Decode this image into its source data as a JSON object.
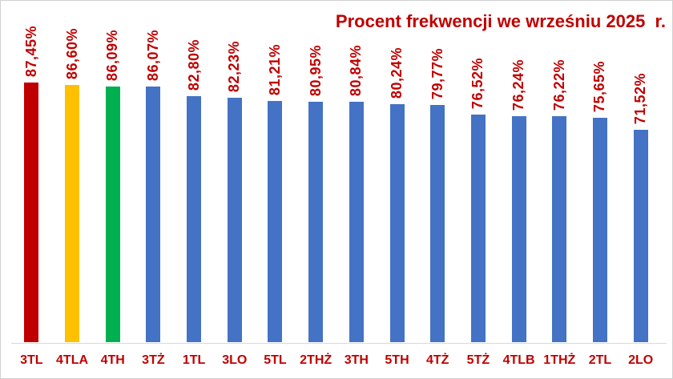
{
  "chart_data": {
    "type": "bar",
    "title": "Procent frekwencji we wrześniu 2025  r.",
    "categories": [
      "3TL",
      "4TLA",
      "4TH",
      "3TŻ",
      "1TL",
      "3LO",
      "5TL",
      "2THŻ",
      "3TH",
      "5TH",
      "4TŻ",
      "5TŻ",
      "4TLB",
      "1THŻ",
      "2TL",
      "2LO"
    ],
    "values": [
      87.45,
      86.6,
      86.09,
      86.07,
      82.8,
      82.23,
      81.21,
      80.95,
      80.84,
      80.24,
      79.77,
      76.52,
      76.24,
      76.22,
      75.65,
      71.52
    ],
    "value_labels": [
      "87,45%",
      "86,60%",
      "86,09%",
      "86,07%",
      "82,80%",
      "82,23%",
      "81,21%",
      "80,95%",
      "80,84%",
      "80,24%",
      "79,77%",
      "76,52%",
      "76,24%",
      "76,22%",
      "75,65%",
      "71,52%"
    ],
    "bar_colors": [
      "#c00000",
      "#ffc000",
      "#00b050",
      "#4472c4",
      "#4472c4",
      "#4472c4",
      "#4472c4",
      "#4472c4",
      "#4472c4",
      "#4472c4",
      "#4472c4",
      "#4472c4",
      "#4472c4",
      "#4472c4",
      "#4472c4",
      "#4472c4"
    ],
    "xlabel": "",
    "ylabel": "",
    "ylim": [
      0,
      100
    ],
    "y_axis_visible": false,
    "gridlines": false,
    "legend": "none",
    "value_label_rotation": 90,
    "value_label_unit": "%"
  },
  "colors": {
    "title_text": "#c00000",
    "label_text": "#c00000",
    "axis_line": "#d9d9d9",
    "background": "#ffffff",
    "bar_default": "#4472c4",
    "bar_rank1": "#c00000",
    "bar_rank2": "#ffc000",
    "bar_rank3": "#00b050"
  }
}
